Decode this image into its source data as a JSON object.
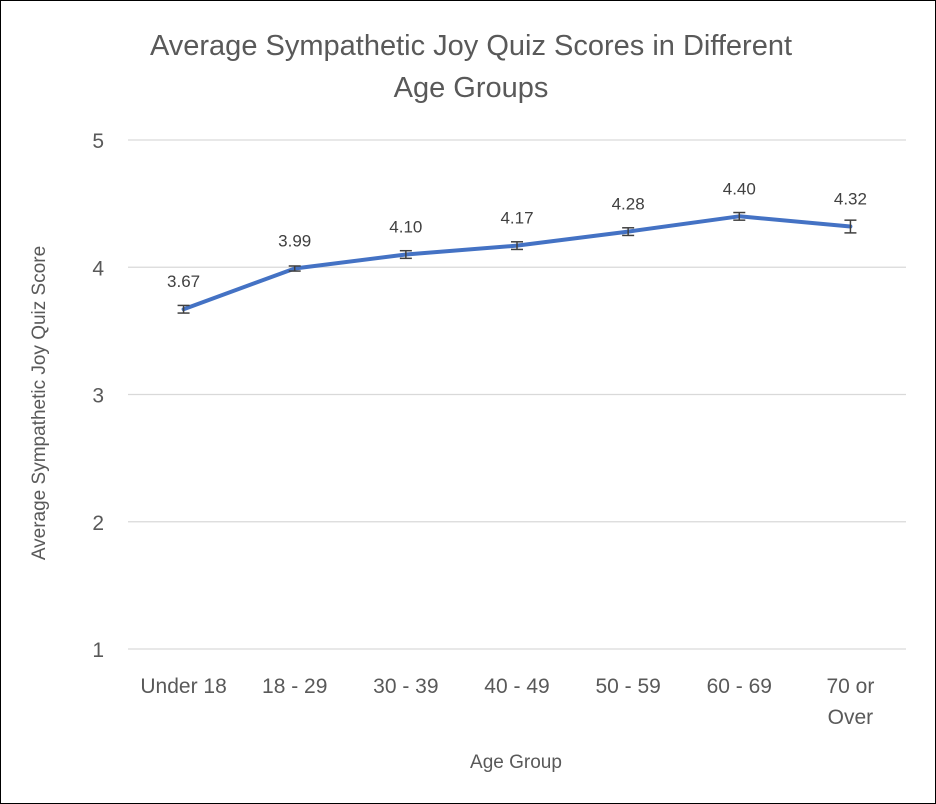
{
  "chart_data": {
    "type": "line",
    "title_line1": "Average Sympathetic Joy Quiz Scores in Different",
    "title_line2": "Age Groups",
    "xlabel": "Age Group",
    "ylabel": "Average Sympathetic Joy Quiz Score",
    "categories": [
      [
        "Under 18"
      ],
      [
        "18 - 29"
      ],
      [
        "30 - 39"
      ],
      [
        "40 - 49"
      ],
      [
        "50 - 59"
      ],
      [
        "60 - 69"
      ],
      [
        "70 or",
        "Over"
      ]
    ],
    "series": [
      {
        "values": [
          3.67,
          3.99,
          4.1,
          4.17,
          4.28,
          4.4,
          4.32
        ],
        "labels": [
          "3.67",
          "3.99",
          "4.10",
          "4.17",
          "4.28",
          "4.40",
          "4.32"
        ],
        "error": [
          0.03,
          0.02,
          0.03,
          0.03,
          0.03,
          0.03,
          0.05
        ],
        "color": "#4472C4"
      }
    ],
    "ylim": [
      1,
      5
    ],
    "yticks": [
      1,
      2,
      3,
      4,
      5
    ],
    "grid": true,
    "legend": "none",
    "colors": {
      "line": "#4472C4",
      "grid": "#d9d9d9",
      "text": "#595959",
      "error_bar": "#404040"
    }
  }
}
